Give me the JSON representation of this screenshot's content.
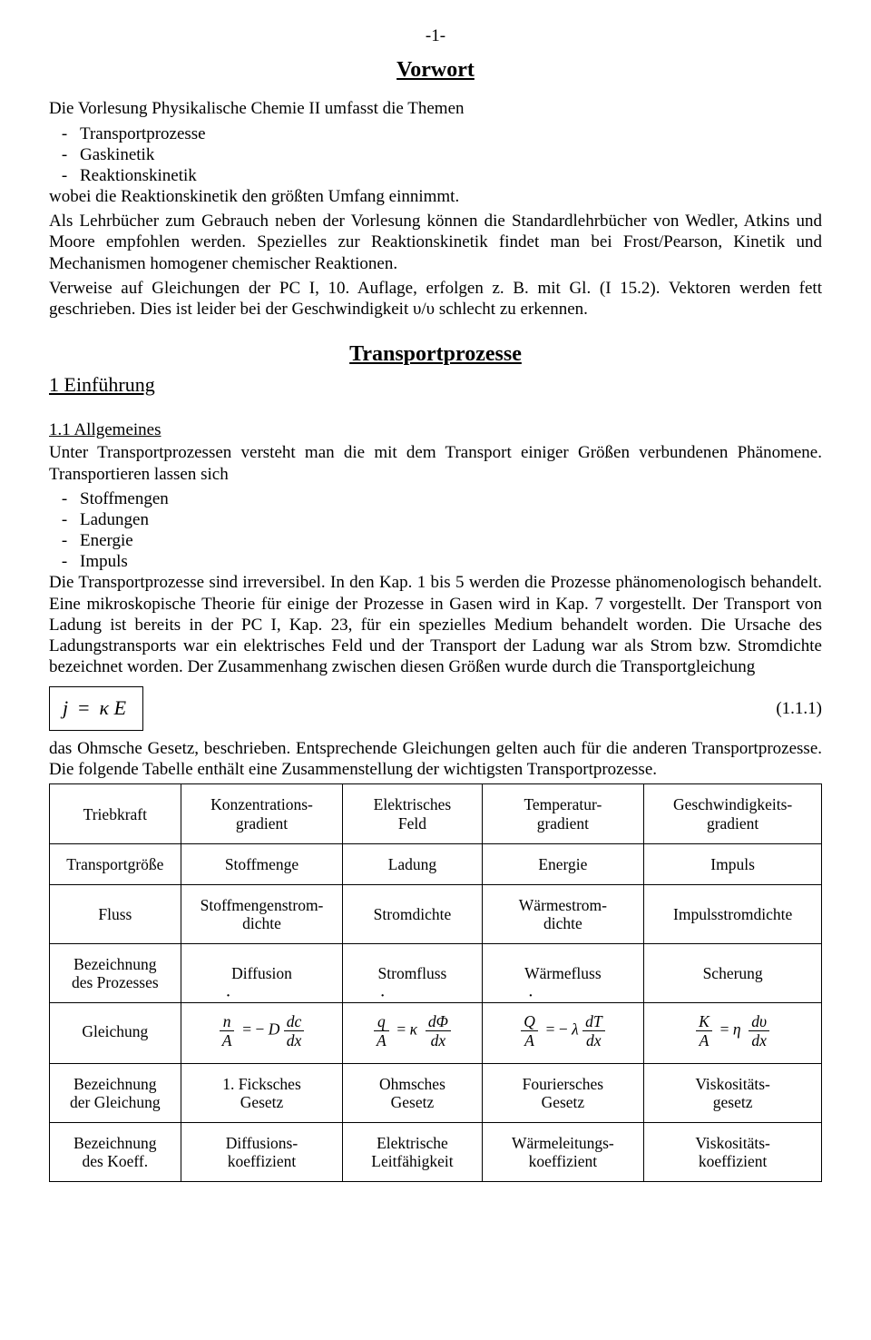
{
  "page_number": "-1-",
  "vorwort_title": "Vorwort",
  "vorwort_intro": "Die Vorlesung Physikalische Chemie II umfasst die Themen",
  "vorwort_bullets": [
    "Transportprozesse",
    "Gaskinetik",
    "Reaktionskinetik"
  ],
  "vorwort_p2_a": "wobei die Reaktionskinetik den größten Umfang einnimmt.",
  "vorwort_p2_b": "Als Lehrbücher zum Gebrauch neben der Vorlesung können die Standardlehrbücher von Wedler, Atkins und Moore empfohlen werden. Spezielles zur Reaktionskinetik findet man bei Frost/Pearson, Kinetik und Mechanismen homogener chemischer Reaktionen.",
  "vorwort_p2_c": "Verweise auf Gleichungen der PC I, 10. Auflage, erfolgen z. B. mit Gl. (I 15.2). Vektoren werden fett geschrieben. Dies ist leider bei der Geschwindigkeit υ/υ schlecht zu erkennen.",
  "transport_title": "Transportprozesse",
  "section1_title": "1 Einführung",
  "subsec_title": "1.1 Allgemeines",
  "p11_a": "Unter Transportprozessen versteht man die mit dem Transport einiger Größen verbundenen Phänomene. Transportieren lassen sich",
  "p11_bullets": [
    "Stoffmengen",
    "Ladungen",
    "Energie",
    "Impuls"
  ],
  "p11_b": "Die Transportprozesse sind irreversibel. In den Kap. 1 bis 5 werden die Prozesse phänomenologisch behandelt. Eine mikroskopische Theorie für einige der Prozesse in Gasen wird in Kap. 7 vorgestellt. Der Transport von Ladung ist bereits in der PC I, Kap. 23, für ein spezielles Medium behandelt worden. Die Ursache des Ladungstransports war ein elektrisches Feld und der Transport der Ladung war als Strom bzw. Stromdichte bezeichnet worden. Der Zusammenhang zwischen diesen Größen wurde durch die Transportgleichung",
  "eq_num": "(1.1.1)",
  "p11_c": "das Ohmsche Gesetz, beschrieben. Entsprechende Gleichungen gelten auch für die anderen Transportprozesse. Die folgende Tabelle enthält eine Zusammenstellung der wichtigsten Transportprozesse.",
  "table": {
    "r1": [
      "Triebkraft",
      "Konzentrations-\ngradient",
      "Elektrisches\nFeld",
      "Temperatur-\ngradient",
      "Geschwindigkeits-\ngradient"
    ],
    "r2": [
      "Transportgröße",
      "Stoffmenge",
      "Ladung",
      "Energie",
      "Impuls"
    ],
    "r3": [
      "Fluss",
      "Stoffmengenstrom-\ndichte",
      "Stromdichte",
      "Wärmestrom-\ndichte",
      "Impulsstromdichte"
    ],
    "r4": [
      "Bezeichnung\ndes Prozesses",
      "Diffusion",
      "Stromfluss",
      "Wärmefluss",
      "Scherung"
    ],
    "r5_label": "Gleichung",
    "r6": [
      "Bezeichnung\nder Gleichung",
      "1. Ficksches\nGesetz",
      "Ohmsches\nGesetz",
      "Fouriersches\nGesetz",
      "Viskositäts-\ngesetz"
    ],
    "r7": [
      "Bezeichnung\ndes Koeff.",
      "Diffusions-\nkoeffizient",
      "Elektrische\nLeitfähigkeit",
      "Wärmeleitungs-\nkoeffizient",
      "Viskositäts-\nkoeffizient"
    ]
  }
}
